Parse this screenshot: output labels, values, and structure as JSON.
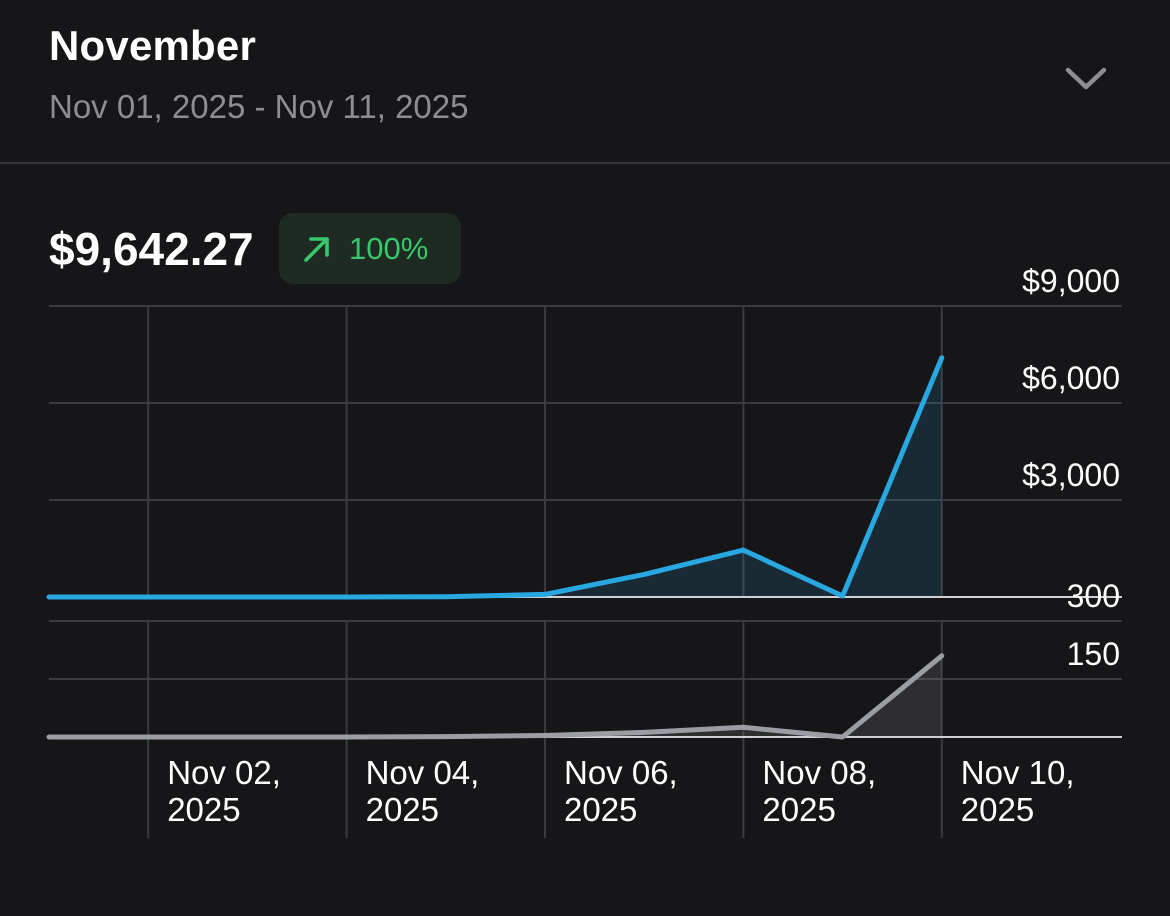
{
  "header": {
    "title": "November",
    "date_range": "Nov 01, 2025 - Nov 11, 2025",
    "expand_icon": "chevron-down-icon"
  },
  "summary": {
    "total": "$9,642.27",
    "change": "100%",
    "change_icon": "arrow-up-right-icon",
    "change_color": "#38c76a"
  },
  "chart_data": [
    {
      "type": "area",
      "x": [
        "2025-11-01",
        "2025-11-02",
        "2025-11-03",
        "2025-11-04",
        "2025-11-05",
        "2025-11-06",
        "2025-11-07",
        "2025-11-08",
        "2025-11-09",
        "2025-11-10"
      ],
      "series": [
        {
          "values": [
            0,
            0,
            0,
            0,
            10,
            80,
            700,
            1450,
            30,
            7400
          ],
          "color": "#29a7e1"
        }
      ],
      "ylim": [
        0,
        9000
      ],
      "yticks": [
        {
          "value": 3000,
          "label": "$3,000"
        },
        {
          "value": 6000,
          "label": "$6,000"
        },
        {
          "value": 9000,
          "label": "$9,000"
        }
      ],
      "grid": true,
      "y_axis_position": "right"
    },
    {
      "type": "area",
      "x": [
        "2025-11-01",
        "2025-11-02",
        "2025-11-03",
        "2025-11-04",
        "2025-11-05",
        "2025-11-06",
        "2025-11-07",
        "2025-11-08",
        "2025-11-09",
        "2025-11-10"
      ],
      "xticks": [
        {
          "value": "2025-11-02",
          "label": [
            "Nov 02,",
            "2025"
          ]
        },
        {
          "value": "2025-11-04",
          "label": [
            "Nov 04,",
            "2025"
          ]
        },
        {
          "value": "2025-11-06",
          "label": [
            "Nov 06,",
            "2025"
          ]
        },
        {
          "value": "2025-11-08",
          "label": [
            "Nov 08,",
            "2025"
          ]
        },
        {
          "value": "2025-11-10",
          "label": [
            "Nov 10,",
            "2025"
          ]
        }
      ],
      "series": [
        {
          "values": [
            0,
            0,
            0,
            0,
            1,
            4,
            12,
            25,
            0,
            210
          ],
          "color": "#9a9da3"
        }
      ],
      "ylim": [
        0,
        300
      ],
      "yticks": [
        {
          "value": 150,
          "label": "150"
        },
        {
          "value": 300,
          "label": "300"
        }
      ],
      "grid": true,
      "y_axis_position": "right"
    }
  ]
}
